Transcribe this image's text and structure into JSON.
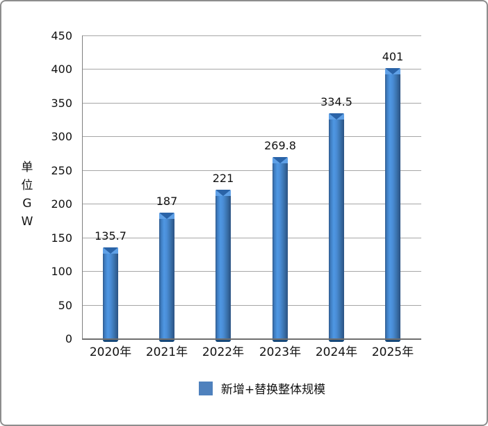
{
  "chart_data": {
    "type": "bar",
    "title": "",
    "categories": [
      "2020年",
      "2021年",
      "2022年",
      "2023年",
      "2024年",
      "2025年"
    ],
    "values": [
      135.7,
      187,
      221,
      269.8,
      334.5,
      401
    ],
    "value_labels": [
      "135.7",
      "187",
      "221",
      "269.8",
      "334.5",
      "401"
    ],
    "xlabel": "",
    "ylabel": "单位GW",
    "ylabel_chars": [
      "单",
      "位",
      "G",
      "W"
    ],
    "ylim": [
      0,
      450
    ],
    "ytick_step": 50,
    "ytick_labels": [
      "0",
      "50",
      "100",
      "150",
      "200",
      "250",
      "300",
      "350",
      "400",
      "450"
    ],
    "grid": true,
    "legend": {
      "label": "新增+替换整体规模",
      "position": "bottom",
      "swatch_color": "#4f81bd"
    },
    "colors": {
      "bar_edge": "#2f5a8c",
      "bar_highlight": "#4f97e3",
      "bar_top_band": "#5fa0e6",
      "bar_top_cap": "#2a63a7",
      "bar_bottom_cap": "#17497a",
      "gridline": "#a6a6a6",
      "axis": "#6e6e6e",
      "panel_border": "#8d8d8d",
      "text": "#111111"
    }
  }
}
